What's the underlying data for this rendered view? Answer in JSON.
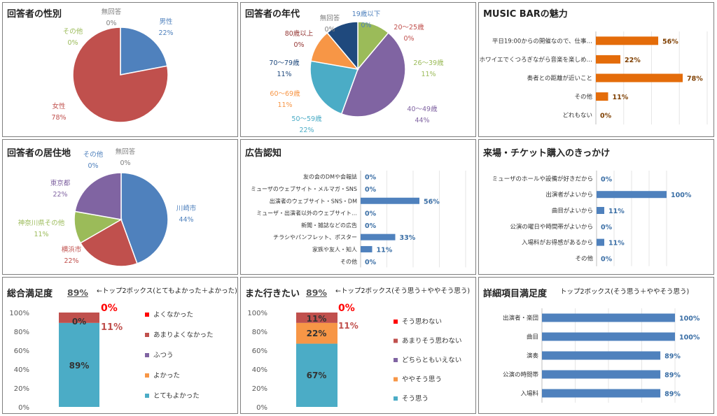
{
  "colors": {
    "blue": "#4f81bd",
    "red": "#c0504d",
    "green": "#9bbb59",
    "purple": "#8064a2",
    "teal": "#4bacc6",
    "orange": "#f79646",
    "navy": "#1f497d",
    "darkred": "#953735",
    "bar_orange": "#e46c0a",
    "bar_blue": "#4f81bd"
  },
  "panels": {
    "gender": {
      "title": "回答者の性別"
    },
    "age": {
      "title": "回答者の年代"
    },
    "appeal": {
      "title": "MUSIC BARの魅力"
    },
    "residence": {
      "title": "回答者の居住地"
    },
    "ad": {
      "title": "広告認知"
    },
    "trigger": {
      "title": "来場・チケット購入のきっかけ"
    },
    "overall": {
      "title": "総合満足度",
      "rate": "89%",
      "note": "←トップ2ボックス(とてもよかった＋よかった)"
    },
    "again": {
      "title": "また行きたい",
      "rate": "89%",
      "note": "←トップ2ボックス(そう思う＋ややそう思う)"
    },
    "detail": {
      "title": "詳細項目満足度",
      "note": "トップ2ボックス(そう思う＋ややそう思う)"
    }
  },
  "chart_data": [
    {
      "id": "gender",
      "type": "pie",
      "slices": [
        {
          "name": "男性",
          "value": 22,
          "label": "22%",
          "color": "#4f81bd"
        },
        {
          "name": "女性",
          "value": 78,
          "label": "78%",
          "color": "#c0504d"
        },
        {
          "name": "その他",
          "value": 0,
          "label": "0%",
          "color": "#9bbb59"
        },
        {
          "name": "無回答",
          "value": 0,
          "label": "0%",
          "color": "#7f7f7f"
        }
      ]
    },
    {
      "id": "age",
      "type": "pie",
      "slices": [
        {
          "name": "19歳以下",
          "value": 0,
          "label": "0%",
          "color": "#4f81bd"
        },
        {
          "name": "20～25歳",
          "value": 0,
          "label": "0%",
          "color": "#c0504d"
        },
        {
          "name": "26～39歳",
          "value": 11,
          "label": "11%",
          "color": "#9bbb59"
        },
        {
          "name": "40～49歳",
          "value": 44,
          "label": "44%",
          "color": "#8064a2"
        },
        {
          "name": "50～59歳",
          "value": 22,
          "label": "22%",
          "color": "#4bacc6"
        },
        {
          "name": "60～69歳",
          "value": 11,
          "label": "11%",
          "color": "#f79646"
        },
        {
          "name": "70～79歳",
          "value": 11,
          "label": "11%",
          "color": "#1f497d"
        },
        {
          "name": "80歳以上",
          "value": 0,
          "label": "0%",
          "color": "#953735"
        },
        {
          "name": "無回答",
          "value": 0,
          "label": "0%",
          "color": "#7f7f7f"
        }
      ]
    },
    {
      "id": "appeal",
      "type": "bar",
      "categories": [
        "平日19:00からの開催なので、仕事…",
        "ホワイエでくつろぎながら音楽を楽しめ…",
        "奏者との距離が近いこと",
        "その他",
        "どれもない"
      ],
      "values": [
        56,
        22,
        78,
        11,
        0
      ],
      "labels": [
        "56%",
        "22%",
        "78%",
        "11%",
        "0%"
      ],
      "xlim": [
        0,
        100
      ]
    },
    {
      "id": "residence",
      "type": "pie",
      "slices": [
        {
          "name": "川崎市",
          "value": 44,
          "label": "44%",
          "color": "#4f81bd"
        },
        {
          "name": "横浜市",
          "value": 22,
          "label": "22%",
          "color": "#c0504d"
        },
        {
          "name": "神奈川県その他",
          "value": 11,
          "label": "11%",
          "color": "#9bbb59"
        },
        {
          "name": "東京都",
          "value": 22,
          "label": "22%",
          "color": "#8064a2"
        },
        {
          "name": "その他",
          "value": 0,
          "label": "0%",
          "color": "#4bacc6"
        },
        {
          "name": "無回答",
          "value": 0,
          "label": "0%",
          "color": "#7f7f7f"
        }
      ]
    },
    {
      "id": "ad",
      "type": "bar",
      "categories": [
        "友の会のDMや会報誌",
        "ミューザのウェブサイト・メルマガ・SNS",
        "出演者のウェブサイト・SNS・DM",
        "ミューザ・出演者以外のウェブサイト…",
        "新聞・雑誌などの広告",
        "チラシやパンフレット、ポスター",
        "家族や友人・知人",
        "その他"
      ],
      "values": [
        0,
        0,
        56,
        0,
        0,
        33,
        11,
        0
      ],
      "labels": [
        "0%",
        "0%",
        "56%",
        "0%",
        "0%",
        "33%",
        "11%",
        "0%"
      ],
      "xlim": [
        0,
        100
      ]
    },
    {
      "id": "trigger",
      "type": "bar",
      "categories": [
        "ミューザのホールや設備が好きだから",
        "出演者がよいから",
        "曲目がよいから",
        "公演の曜日や時間帯がよいから",
        "入場料がお得感があるから",
        "その他"
      ],
      "values": [
        0,
        100,
        11,
        0,
        11,
        0
      ],
      "labels": [
        "0%",
        "100%",
        "11%",
        "0%",
        "11%",
        "0%"
      ],
      "xlim": [
        0,
        100
      ]
    },
    {
      "id": "overall",
      "type": "bar",
      "stacked": true,
      "yticks": [
        "0%",
        "20%",
        "40%",
        "60%",
        "80%",
        "100%"
      ],
      "ylim": [
        0,
        100
      ],
      "series": [
        {
          "name": "とてもよかった",
          "value": 89,
          "label": "89%",
          "color": "#4bacc6"
        },
        {
          "name": "よかった",
          "value": 0,
          "label": "0%",
          "color": "#f79646"
        },
        {
          "name": "ふつう",
          "value": 0,
          "label": "0%",
          "color": "#8064a2"
        },
        {
          "name": "あまりよくなかった",
          "value": 11,
          "label": "11%",
          "color": "#c0504d"
        },
        {
          "name": "よくなかった",
          "value": 0,
          "label": "0%",
          "color": "#ff0000"
        }
      ]
    },
    {
      "id": "again",
      "type": "bar",
      "stacked": true,
      "yticks": [
        "0%",
        "20%",
        "40%",
        "60%",
        "80%",
        "100%"
      ],
      "ylim": [
        0,
        100
      ],
      "series": [
        {
          "name": "そう思う",
          "value": 67,
          "label": "67%",
          "color": "#4bacc6"
        },
        {
          "name": "ややそう思う",
          "value": 22,
          "label": "22%",
          "color": "#f79646"
        },
        {
          "name": "どちらともいえない",
          "value": 0,
          "label": "0%",
          "color": "#8064a2"
        },
        {
          "name": "あまりそう思わない",
          "value": 11,
          "label": "11%",
          "color": "#c0504d"
        },
        {
          "name": "そう思わない",
          "value": 0,
          "label": "0%",
          "color": "#ff0000"
        }
      ]
    },
    {
      "id": "detail",
      "type": "bar",
      "categories": [
        "出演者・楽団",
        "曲目",
        "演奏",
        "公演の時間帯",
        "入場料"
      ],
      "values": [
        100,
        100,
        89,
        89,
        89
      ],
      "labels": [
        "100%",
        "100%",
        "89%",
        "89%",
        "89%"
      ],
      "xlim": [
        0,
        100
      ]
    }
  ]
}
